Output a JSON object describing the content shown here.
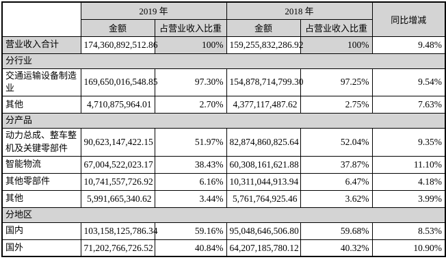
{
  "colors": {
    "header_bg": "#d4d4d4",
    "section_bg": "#d4d4d4",
    "border": "#000000",
    "cell_bg": "#ffffff"
  },
  "table": {
    "header": {
      "corner": "",
      "year_2019": "2019 年",
      "year_2018": "2018 年",
      "yoy": "同比增减",
      "amount_2019": "金额",
      "share_2019": "占营业收入比重",
      "amount_2018": "金额",
      "share_2018": "占营业收入比重"
    },
    "rows": [
      {
        "type": "data",
        "label": "营业收入合计",
        "cells": [
          "174,360,892,512.86",
          "100%",
          "159,255,832,286.92",
          "100%",
          "9.48%"
        ],
        "shaded": [
          true,
          false,
          true,
          false,
          true,
          false
        ]
      },
      {
        "type": "section",
        "label": "分行业"
      },
      {
        "type": "data",
        "label": "交通运输设备制造业",
        "cells": [
          "169,650,016,548.85",
          "97.30%",
          "154,878,714,799.30",
          "97.25%",
          "9.54%"
        ],
        "shaded": [
          false,
          false,
          false,
          false,
          false,
          false
        ]
      },
      {
        "type": "data",
        "label": "其他",
        "cells": [
          "4,710,875,964.01",
          "2.70%",
          "4,377,117,487.62",
          "2.75%",
          "7.63%"
        ],
        "shaded": [
          false,
          false,
          false,
          false,
          false,
          false
        ]
      },
      {
        "type": "section",
        "label": "分产品"
      },
      {
        "type": "data",
        "label": "动力总成、整车整机及关键零部件",
        "cells": [
          "90,623,147,422.15",
          "51.97%",
          "82,874,860,825.64",
          "52.04%",
          "9.35%"
        ],
        "shaded": [
          false,
          false,
          false,
          false,
          false,
          false
        ]
      },
      {
        "type": "data",
        "label": "智能物流",
        "cells": [
          "67,004,522,023.17",
          "38.43%",
          "60,308,161,621.88",
          "37.87%",
          "11.10%"
        ],
        "shaded": [
          false,
          false,
          false,
          false,
          false,
          false
        ]
      },
      {
        "type": "data",
        "label": "其他零部件",
        "cells": [
          "10,741,557,726.92",
          "6.16%",
          "10,311,044,913.94",
          "6.47%",
          "4.18%"
        ],
        "shaded": [
          false,
          false,
          false,
          false,
          false,
          false
        ]
      },
      {
        "type": "data",
        "label": "其他",
        "cells": [
          "5,991,665,340.62",
          "3.44%",
          "5,761,764,925.46",
          "3.62%",
          "3.99%"
        ],
        "shaded": [
          false,
          false,
          false,
          false,
          false,
          false
        ]
      },
      {
        "type": "section",
        "label": "分地区"
      },
      {
        "type": "data",
        "label": "国内",
        "cells": [
          "103,158,125,786.34",
          "59.16%",
          "95,048,646,506.80",
          "59.68%",
          "8.53%"
        ],
        "shaded": [
          false,
          false,
          false,
          false,
          false,
          false
        ]
      },
      {
        "type": "data",
        "label": "国外",
        "cells": [
          "71,202,766,726.52",
          "40.84%",
          "64,207,185,780.12",
          "40.32%",
          "10.90%"
        ],
        "shaded": [
          false,
          false,
          false,
          false,
          false,
          false
        ]
      }
    ]
  }
}
